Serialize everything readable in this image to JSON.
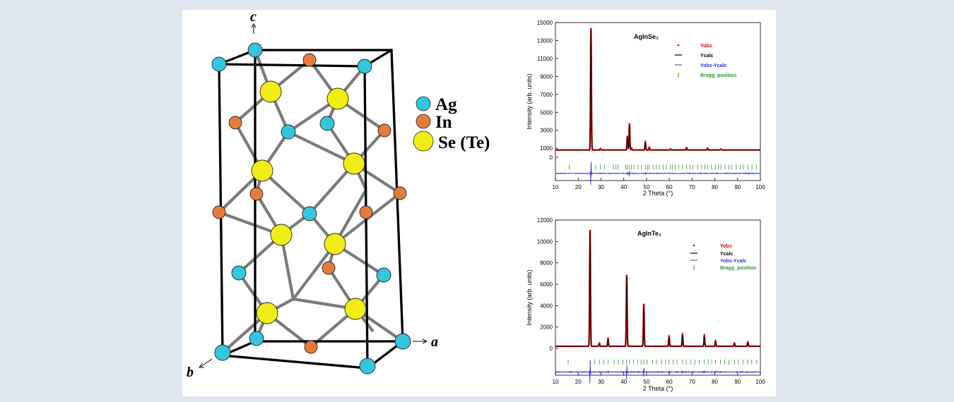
{
  "crystal": {
    "axes": {
      "a": "a",
      "b": "b",
      "c": "c"
    },
    "legend": [
      {
        "label": "Ag",
        "color": "#33c6dd"
      },
      {
        "label": "In",
        "color": "#e77b3b"
      },
      {
        "label": "Se (Te)",
        "color": "#f2ec15"
      }
    ]
  },
  "chart_data": [
    {
      "type": "line",
      "title": "AgInSe₂",
      "xlabel": "2 Theta (°)",
      "ylabel": "Intensity (arb. units)",
      "xlim": [
        10,
        100
      ],
      "ylim": [
        -2600,
        15000
      ],
      "xticks": [
        10,
        20,
        30,
        40,
        50,
        60,
        70,
        80,
        90,
        100
      ],
      "yticks": [
        0,
        1000,
        3000,
        5000,
        7000,
        9000,
        11000,
        13000,
        15000
      ],
      "legend": [
        "Yobs",
        "Ycalc",
        "Yobs-Ycalc",
        "Bragg_position"
      ],
      "background": 800,
      "difference_offset": -1800,
      "peaks": [
        {
          "x": 25.6,
          "y": 14300
        },
        {
          "x": 29.8,
          "y": 950
        },
        {
          "x": 41.6,
          "y": 2300
        },
        {
          "x": 42.5,
          "y": 3700
        },
        {
          "x": 43.4,
          "y": 1000
        },
        {
          "x": 49.5,
          "y": 1700
        },
        {
          "x": 51.2,
          "y": 1100
        },
        {
          "x": 60.5,
          "y": 900
        },
        {
          "x": 67.6,
          "y": 1050
        },
        {
          "x": 76.8,
          "y": 1000
        },
        {
          "x": 82.7,
          "y": 900
        }
      ],
      "bragg_positions": [
        16.1,
        25.6,
        27.7,
        29.8,
        31.5,
        35.5,
        36.6,
        37.5,
        40.9,
        41.6,
        42.5,
        43.4,
        44.5,
        46.3,
        47.8,
        49.5,
        50.4,
        51.2,
        52.9,
        54.2,
        55.6,
        57.3,
        58.7,
        60.5,
        61.3,
        62.6,
        64.2,
        65.8,
        67.6,
        69.1,
        70.3,
        72.5,
        74.2,
        75.6,
        76.8,
        78.5,
        80.2,
        81.6,
        82.7,
        84.5,
        86.1,
        87.3,
        89.4,
        91.2,
        92.5,
        94.6,
        96.3,
        98.2
      ]
    },
    {
      "type": "line",
      "title": "AgInTe₂",
      "xlabel": "2 Theta (°)",
      "ylabel": "Intensity (arb. units)",
      "xlim": [
        10,
        100
      ],
      "ylim": [
        -2500,
        12000
      ],
      "xticks": [
        10,
        20,
        30,
        40,
        50,
        60,
        70,
        80,
        90,
        100
      ],
      "yticks": [
        0,
        2000,
        4000,
        6000,
        8000,
        10000,
        12000
      ],
      "legend": [
        "Yobs",
        "Ycalc",
        "Yobs-Ycalc",
        "Bragg_position"
      ],
      "background": 200,
      "difference_offset": -2200,
      "peaks": [
        {
          "x": 25.2,
          "y": 11000
        },
        {
          "x": 29.3,
          "y": 500
        },
        {
          "x": 33.1,
          "y": 900
        },
        {
          "x": 41.3,
          "y": 6800
        },
        {
          "x": 48.8,
          "y": 4100
        },
        {
          "x": 59.9,
          "y": 1100
        },
        {
          "x": 65.8,
          "y": 1300
        },
        {
          "x": 75.4,
          "y": 1200
        },
        {
          "x": 80.3,
          "y": 700
        },
        {
          "x": 88.6,
          "y": 500
        },
        {
          "x": 94.5,
          "y": 600
        }
      ],
      "bragg_positions": [
        15.6,
        25.2,
        27.1,
        29.3,
        31.2,
        33.1,
        35.8,
        37.7,
        39.6,
        41.3,
        42.5,
        44.3,
        46.2,
        47.6,
        48.8,
        50.3,
        52.6,
        54.4,
        56.7,
        58.3,
        59.9,
        61.7,
        63.4,
        65.8,
        67.4,
        69.5,
        71.3,
        73.2,
        75.4,
        77.1,
        78.6,
        80.3,
        82.5,
        84.3,
        86.2,
        88.6,
        90.3,
        92.4,
        94.5,
        96.2,
        98.4
      ]
    }
  ]
}
